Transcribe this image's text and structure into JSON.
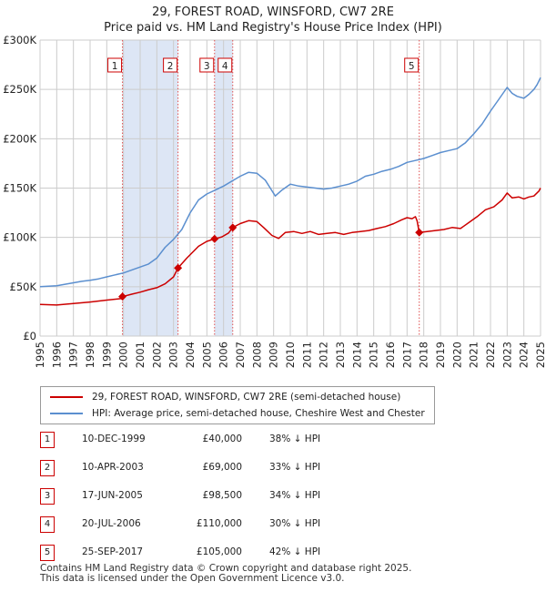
{
  "title_line1": "29, FOREST ROAD, WINSFORD, CW7 2RE",
  "title_line2": "Price paid vs. HM Land Registry's House Price Index (HPI)",
  "colors": {
    "property": "#cc0000",
    "hpi": "#5b8fcf",
    "shade": "#dde6f5",
    "grid": "#cccccc"
  },
  "legend": {
    "property_label": "29, FOREST ROAD, WINSFORD, CW7 2RE (semi-detached house)",
    "hpi_label": "HPI: Average price, semi-detached house, Cheshire West and Chester"
  },
  "sales": [
    {
      "num": "1",
      "date": "10-DEC-1999",
      "price": "£40,000",
      "hpi_note": "38% ↓ HPI"
    },
    {
      "num": "2",
      "date": "10-APR-2003",
      "price": "£69,000",
      "hpi_note": "33% ↓ HPI"
    },
    {
      "num": "3",
      "date": "17-JUN-2005",
      "price": "£98,500",
      "hpi_note": "34% ↓ HPI"
    },
    {
      "num": "4",
      "date": "20-JUL-2006",
      "price": "£110,000",
      "hpi_note": "30% ↓ HPI"
    },
    {
      "num": "5",
      "date": "25-SEP-2017",
      "price": "£105,000",
      "hpi_note": "42% ↓ HPI"
    }
  ],
  "footer_line1": "Contains HM Land Registry data © Crown copyright and database right 2025.",
  "footer_line2": "This data is licensed under the Open Government Licence v3.0.",
  "chart_data": {
    "type": "line",
    "title": "29, FOREST ROAD, WINSFORD, CW7 2RE",
    "subtitle": "Price paid vs. HM Land Registry's House Price Index (HPI)",
    "xlabel": "",
    "ylabel": "",
    "xlim": [
      1995,
      2025
    ],
    "ylim": [
      0,
      300000
    ],
    "grid": true,
    "legend_position": "bottom",
    "x_ticks": [
      "1995",
      "1996",
      "1997",
      "1998",
      "1999",
      "2000",
      "2001",
      "2002",
      "2003",
      "2004",
      "2005",
      "2006",
      "2007",
      "2008",
      "2009",
      "2010",
      "2011",
      "2012",
      "2013",
      "2014",
      "2015",
      "2016",
      "2017",
      "2018",
      "2019",
      "2020",
      "2021",
      "2022",
      "2023",
      "2024",
      "2025"
    ],
    "y_ticks": [
      {
        "value": 0,
        "label": "£0"
      },
      {
        "value": 50000,
        "label": "£50K"
      },
      {
        "value": 100000,
        "label": "£100K"
      },
      {
        "value": 150000,
        "label": "£150K"
      },
      {
        "value": 200000,
        "label": "£200K"
      },
      {
        "value": 250000,
        "label": "£250K"
      },
      {
        "value": 300000,
        "label": "£300K"
      }
    ],
    "shaded_ranges": [
      [
        1999.94,
        2003.27
      ],
      [
        2005.46,
        2006.55
      ]
    ],
    "sale_markers": [
      {
        "label": "1",
        "x": 1999.94,
        "y": 40000
      },
      {
        "label": "2",
        "x": 2003.27,
        "y": 69000
      },
      {
        "label": "3",
        "x": 2005.46,
        "y": 98500
      },
      {
        "label": "4",
        "x": 2006.55,
        "y": 110000
      },
      {
        "label": "5",
        "x": 2017.73,
        "y": 105000
      }
    ],
    "series": [
      {
        "name": "29, FOREST ROAD, WINSFORD, CW7 2RE (semi-detached house)",
        "color": "#cc0000",
        "points": [
          [
            1995.0,
            32000
          ],
          [
            1996.0,
            31500
          ],
          [
            1997.0,
            33000
          ],
          [
            1998.0,
            34500
          ],
          [
            1999.0,
            36500
          ],
          [
            1999.9,
            38000
          ],
          [
            1999.94,
            40000
          ],
          [
            2000.5,
            42500
          ],
          [
            2001.0,
            44500
          ],
          [
            2001.5,
            47000
          ],
          [
            2002.0,
            49000
          ],
          [
            2002.5,
            53000
          ],
          [
            2003.0,
            60000
          ],
          [
            2003.27,
            69000
          ],
          [
            2003.8,
            79000
          ],
          [
            2004.5,
            91000
          ],
          [
            2005.0,
            96000
          ],
          [
            2005.46,
            98500
          ],
          [
            2005.9,
            100500
          ],
          [
            2006.3,
            104500
          ],
          [
            2006.55,
            110000
          ],
          [
            2007.0,
            114000
          ],
          [
            2007.5,
            117000
          ],
          [
            2008.0,
            116000
          ],
          [
            2008.4,
            110000
          ],
          [
            2008.9,
            102000
          ],
          [
            2009.3,
            99000
          ],
          [
            2009.7,
            105000
          ],
          [
            2010.2,
            106000
          ],
          [
            2010.7,
            104000
          ],
          [
            2011.2,
            106000
          ],
          [
            2011.7,
            103000
          ],
          [
            2012.2,
            104000
          ],
          [
            2012.7,
            105000
          ],
          [
            2013.2,
            103000
          ],
          [
            2013.7,
            105000
          ],
          [
            2014.2,
            106000
          ],
          [
            2014.7,
            107000
          ],
          [
            2015.2,
            109000
          ],
          [
            2015.7,
            111000
          ],
          [
            2016.2,
            114000
          ],
          [
            2016.7,
            118000
          ],
          [
            2017.0,
            120000
          ],
          [
            2017.3,
            119000
          ],
          [
            2017.5,
            121000
          ],
          [
            2017.6,
            117000
          ],
          [
            2017.73,
            105000
          ],
          [
            2018.2,
            106000
          ],
          [
            2018.7,
            107000
          ],
          [
            2019.2,
            108000
          ],
          [
            2019.7,
            110000
          ],
          [
            2020.2,
            109000
          ],
          [
            2020.7,
            115000
          ],
          [
            2021.2,
            121000
          ],
          [
            2021.7,
            128000
          ],
          [
            2022.2,
            131000
          ],
          [
            2022.7,
            138000
          ],
          [
            2023.0,
            145000
          ],
          [
            2023.3,
            140000
          ],
          [
            2023.7,
            141000
          ],
          [
            2024.0,
            139000
          ],
          [
            2024.3,
            141000
          ],
          [
            2024.6,
            142000
          ],
          [
            2024.9,
            147000
          ],
          [
            2025.0,
            150000
          ]
        ]
      },
      {
        "name": "HPI: Average price, semi-detached house, Cheshire West and Chester",
        "color": "#5b8fcf",
        "points": [
          [
            1995.0,
            50000
          ],
          [
            1995.5,
            50500
          ],
          [
            1996.0,
            51000
          ],
          [
            1996.5,
            52500
          ],
          [
            1997.0,
            54000
          ],
          [
            1997.5,
            55500
          ],
          [
            1998.0,
            56500
          ],
          [
            1998.5,
            58000
          ],
          [
            1999.0,
            60000
          ],
          [
            1999.5,
            62000
          ],
          [
            2000.0,
            64000
          ],
          [
            2000.5,
            67000
          ],
          [
            2001.0,
            70000
          ],
          [
            2001.5,
            73000
          ],
          [
            2002.0,
            79000
          ],
          [
            2002.5,
            90000
          ],
          [
            2003.0,
            98000
          ],
          [
            2003.5,
            108000
          ],
          [
            2004.0,
            125000
          ],
          [
            2004.5,
            138000
          ],
          [
            2005.0,
            144000
          ],
          [
            2005.5,
            148000
          ],
          [
            2006.0,
            152000
          ],
          [
            2006.5,
            157000
          ],
          [
            2007.0,
            162000
          ],
          [
            2007.5,
            166000
          ],
          [
            2008.0,
            165000
          ],
          [
            2008.5,
            158000
          ],
          [
            2008.8,
            150000
          ],
          [
            2009.1,
            142000
          ],
          [
            2009.5,
            148000
          ],
          [
            2010.0,
            154000
          ],
          [
            2010.5,
            152000
          ],
          [
            2011.0,
            151000
          ],
          [
            2011.5,
            150000
          ],
          [
            2012.0,
            149000
          ],
          [
            2012.5,
            150000
          ],
          [
            2013.0,
            152000
          ],
          [
            2013.5,
            154000
          ],
          [
            2014.0,
            157000
          ],
          [
            2014.5,
            162000
          ],
          [
            2015.0,
            164000
          ],
          [
            2015.5,
            167000
          ],
          [
            2016.0,
            169000
          ],
          [
            2016.5,
            172000
          ],
          [
            2017.0,
            176000
          ],
          [
            2017.5,
            178000
          ],
          [
            2018.0,
            180000
          ],
          [
            2018.5,
            183000
          ],
          [
            2019.0,
            186000
          ],
          [
            2019.5,
            188000
          ],
          [
            2020.0,
            190000
          ],
          [
            2020.5,
            196000
          ],
          [
            2021.0,
            205000
          ],
          [
            2021.5,
            215000
          ],
          [
            2022.0,
            228000
          ],
          [
            2022.5,
            240000
          ],
          [
            2023.0,
            252000
          ],
          [
            2023.3,
            246000
          ],
          [
            2023.6,
            243000
          ],
          [
            2024.0,
            241000
          ],
          [
            2024.3,
            245000
          ],
          [
            2024.6,
            250000
          ],
          [
            2024.8,
            255000
          ],
          [
            2025.0,
            262000
          ]
        ]
      }
    ]
  }
}
